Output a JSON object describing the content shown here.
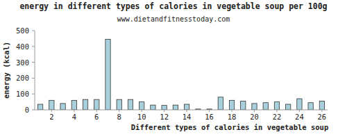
{
  "chart_data": {
    "type": "bar",
    "title": "energy in different types of calories in vegetable soup per 100g",
    "subtitle": "www.dietandfitnesstoday.com",
    "x_label": "Different types of calories in vegetable soup",
    "y_label": "energy (kcal)",
    "categories": [
      null,
      "2",
      null,
      "4",
      null,
      "6",
      null,
      "8",
      null,
      "10",
      null,
      "12",
      null,
      "14",
      null,
      "16",
      null,
      "18",
      null,
      "20",
      null,
      "22",
      null,
      "24",
      null,
      "26"
    ],
    "values": [
      35,
      60,
      40,
      60,
      65,
      65,
      445,
      65,
      65,
      50,
      30,
      28,
      30,
      35,
      5,
      5,
      80,
      60,
      55,
      40,
      45,
      50,
      35,
      70,
      45,
      55
    ],
    "color": "#a8d0dc",
    "ylim": [
      0,
      500
    ],
    "yticks": [
      0,
      100,
      200,
      300,
      400,
      500
    ],
    "grid": false
  }
}
